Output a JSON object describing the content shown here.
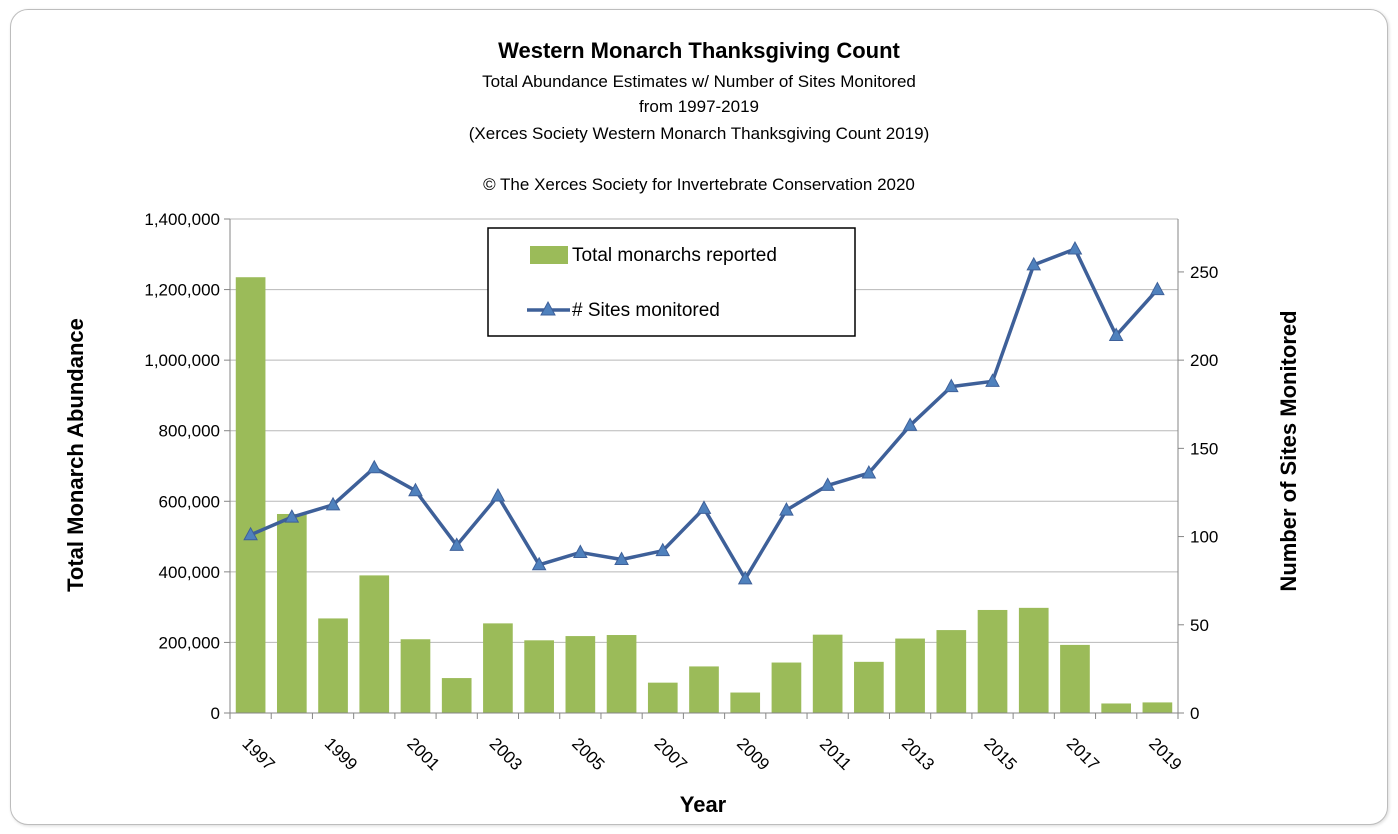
{
  "chart_data": {
    "type": "bar",
    "title": "Western Monarch Thanksgiving Count",
    "subtitle": [
      "Total Abundance Estimates w/ Number of Sites Monitored",
      "from 1997-2019",
      "(Xerces Society Western Monarch Thanksgiving Count 2019)"
    ],
    "copyright": "© The Xerces Society for Invertebrate Conservation 2020",
    "xlabel": "Year",
    "ylabel": "Total Monarch Abundance",
    "y2label": "Number of Sites Monitored",
    "categories": [
      "1997",
      "1998",
      "1999",
      "2000",
      "2001",
      "2002",
      "2003",
      "2004",
      "2005",
      "2006",
      "2007",
      "2008",
      "2009",
      "2010",
      "2011",
      "2012",
      "2013",
      "2014",
      "2015",
      "2016",
      "2017",
      "2018",
      "2019"
    ],
    "x_tick_labels": [
      "1997",
      "1999",
      "2001",
      "2003",
      "2005",
      "2007",
      "2009",
      "2011",
      "2013",
      "2015",
      "2017",
      "2019"
    ],
    "y_ticks": [
      "0",
      "200,000",
      "400,000",
      "600,000",
      "800,000",
      "1,000,000",
      "1,200,000",
      "1,400,000"
    ],
    "y2_ticks": [
      "0",
      "50",
      "100",
      "150",
      "200",
      "250"
    ],
    "ylim": [
      0,
      1400000
    ],
    "y2lim": [
      0,
      280
    ],
    "grid": true,
    "legend_position": "top-center",
    "series": [
      {
        "name": "Total monarchs reported",
        "type": "bar",
        "axis": "left",
        "color": "#9bbb59",
        "values": [
          1235000,
          564000,
          268000,
          390000,
          209000,
          99000,
          254000,
          206000,
          218000,
          221000,
          86000,
          132000,
          58000,
          143000,
          222000,
          145000,
          211000,
          235000,
          292000,
          298000,
          193000,
          27000,
          30000
        ]
      },
      {
        "name": "# Sites monitored",
        "type": "line",
        "axis": "right",
        "color": "#3e6099",
        "marker": "triangle",
        "values": [
          101,
          111,
          118,
          139,
          126,
          95,
          123,
          84,
          91,
          87,
          92,
          116,
          76,
          115,
          129,
          136,
          163,
          185,
          188,
          254,
          263,
          214,
          240
        ]
      }
    ]
  }
}
